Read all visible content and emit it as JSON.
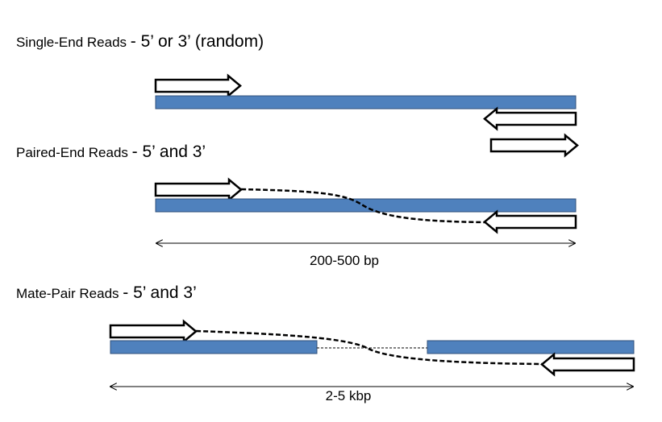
{
  "sections": [
    {
      "label": "Single-End Reads",
      "detail": "- 5’ or 3’ (random)"
    },
    {
      "label": "Paired-End Reads",
      "detail": "- 5’ and 3’"
    },
    {
      "label": "Mate-Pair Reads",
      "detail": "- 5’ and 3’"
    }
  ],
  "measures": {
    "paired": "200-500 bp",
    "mate": "2-5 kbp"
  },
  "colors": {
    "fragment": "#4f81bd",
    "fragment_border": "#2f4f7a",
    "read_outline": "#000000",
    "read_fill": "#ffffff"
  }
}
